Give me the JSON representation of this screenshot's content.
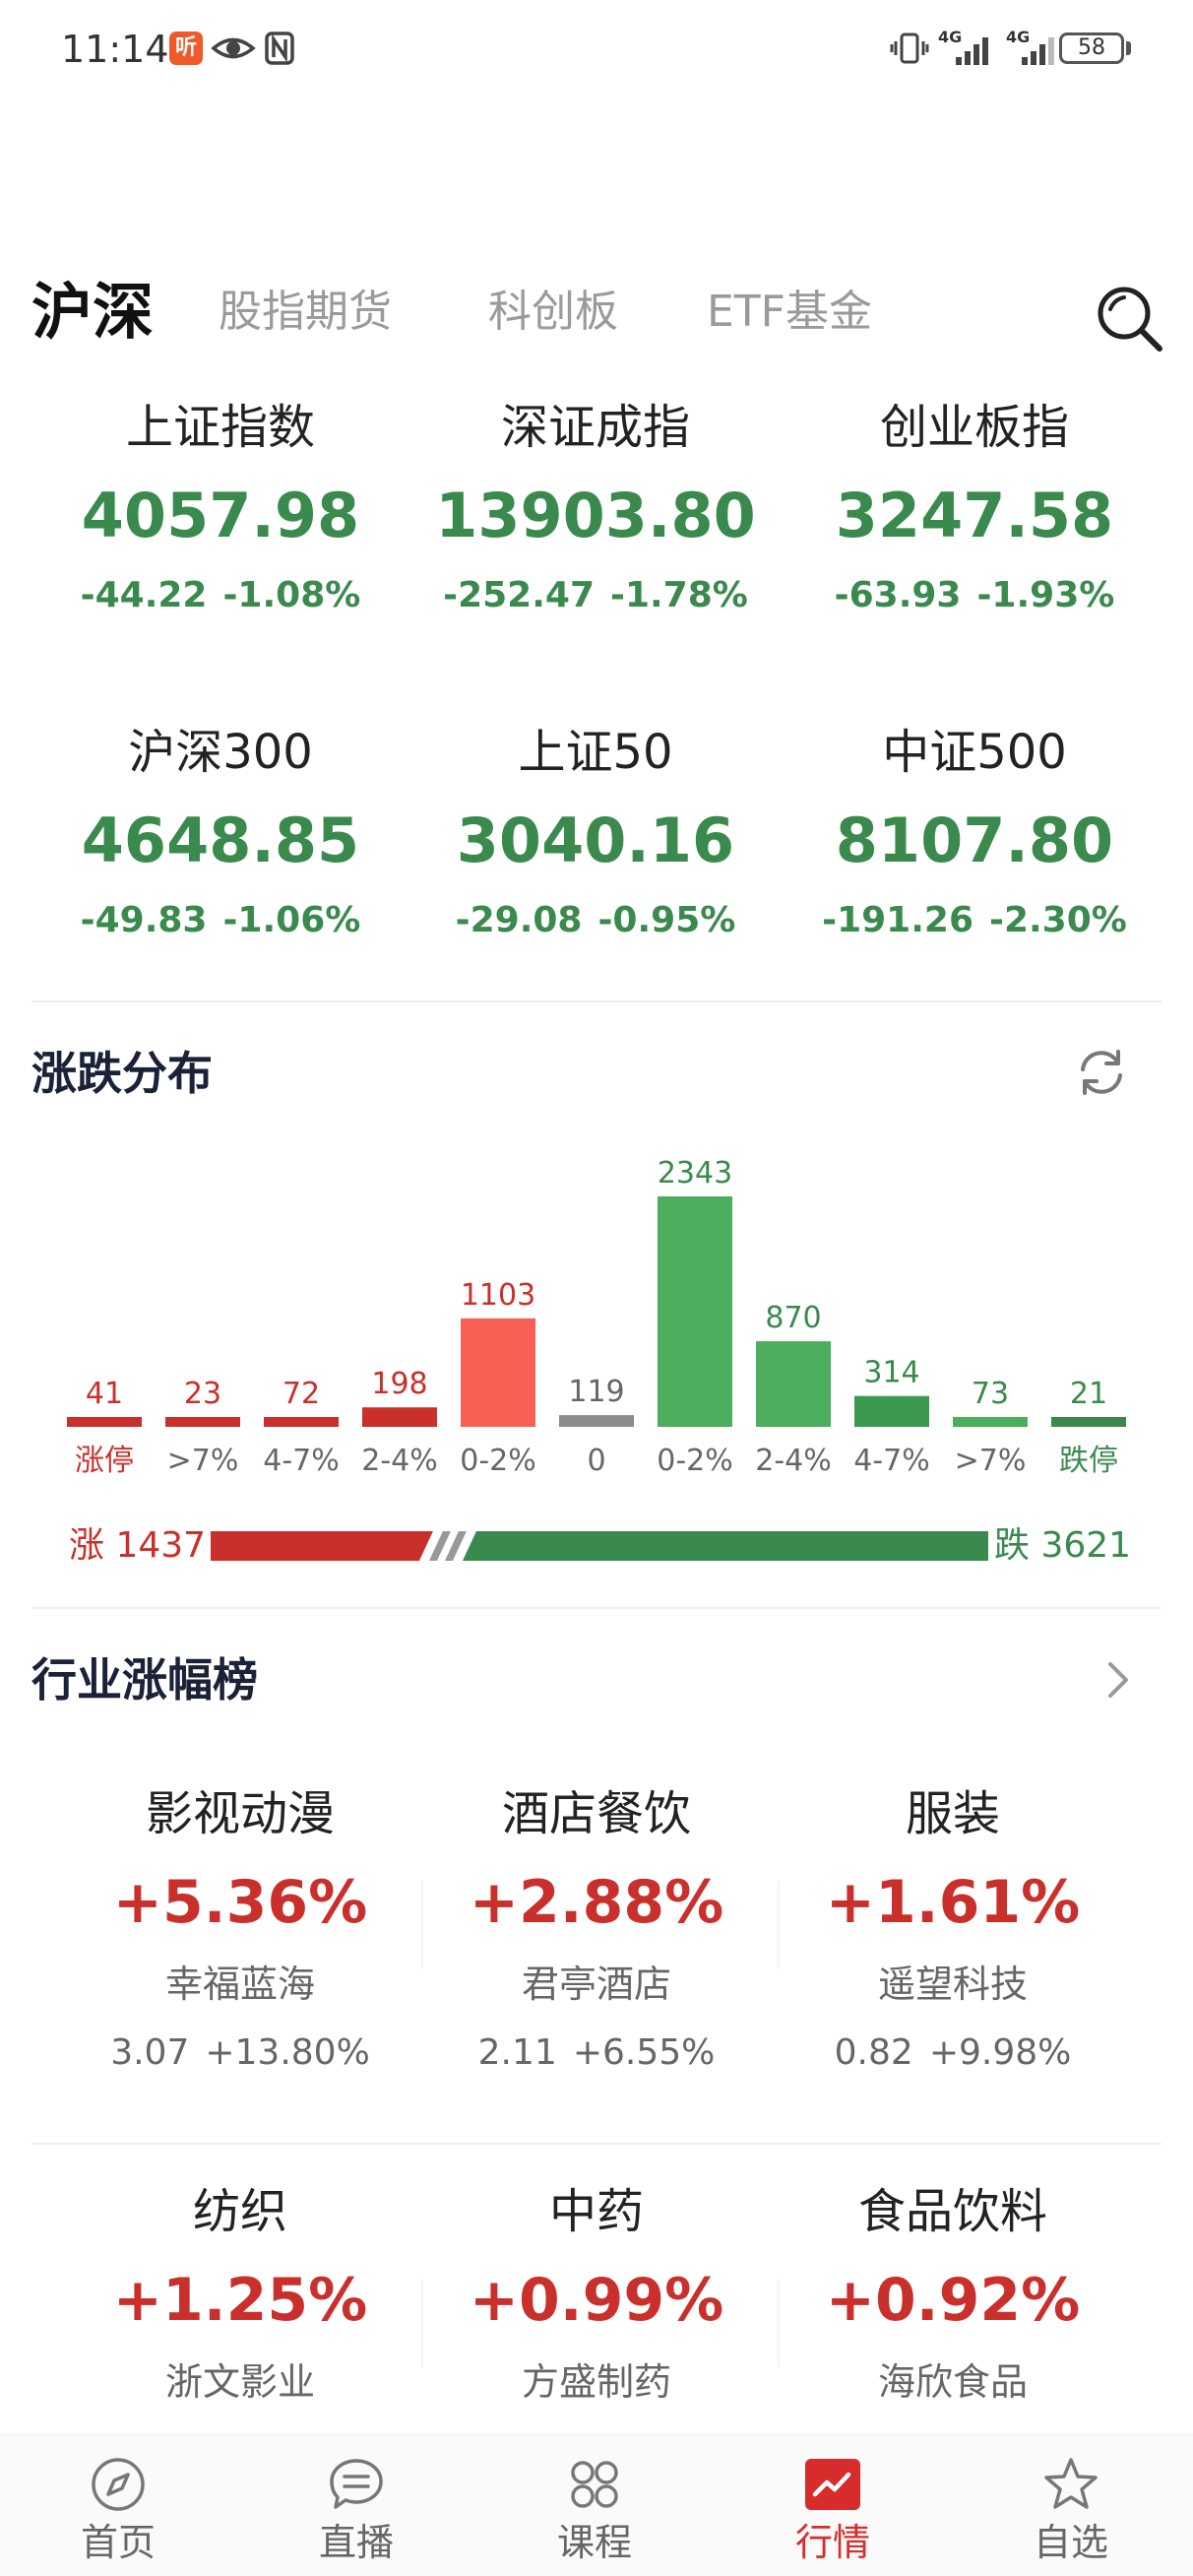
{
  "status_bar": {
    "time": "11:14",
    "app_badge": "听",
    "network_1": "4G",
    "network_2": "4G",
    "battery": "58"
  },
  "tabs": [
    {
      "label": "沪深",
      "active": true
    },
    {
      "label": "股指期货",
      "active": false
    },
    {
      "label": "科创板",
      "active": false
    },
    {
      "label": "ETF基金",
      "active": false
    }
  ],
  "indices": [
    {
      "name": "上证指数",
      "value": "4057.98",
      "change": "-44.22",
      "pct": "-1.08%"
    },
    {
      "name": "深证成指",
      "value": "13903.80",
      "change": "-252.47",
      "pct": "-1.78%"
    },
    {
      "name": "创业板指",
      "value": "3247.58",
      "change": "-63.93",
      "pct": "-1.93%"
    },
    {
      "name": "沪深300",
      "value": "4648.85",
      "change": "-49.83",
      "pct": "-1.06%"
    },
    {
      "name": "上证50",
      "value": "3040.16",
      "change": "-29.08",
      "pct": "-0.95%"
    },
    {
      "name": "中证500",
      "value": "8107.80",
      "change": "-191.26",
      "pct": "-2.30%"
    }
  ],
  "distribution": {
    "title": "涨跌分布",
    "up_label": "涨 1437",
    "down_label": "跌 3621",
    "up_count": 1437,
    "down_count": 3621
  },
  "chart_data": {
    "type": "bar",
    "categories": [
      "涨停",
      ">7%",
      "4-7%",
      "2-4%",
      "0-2%",
      "0",
      "0-2%",
      "2-4%",
      "4-7%",
      ">7%",
      "跌停"
    ],
    "values": [
      41,
      23,
      72,
      198,
      1103,
      119,
      2343,
      870,
      314,
      73,
      21
    ],
    "colors": [
      "#c9302c",
      "#c9302c",
      "#c9302c",
      "#c9302c",
      "#f86056",
      "#8c8c8c",
      "#4cae5c",
      "#4cae5c",
      "#3c9a4e",
      "#4cae5c",
      "#3c8a4a"
    ],
    "label_colors": [
      "#c9302c",
      "#c9302c",
      "#c9302c",
      "#c9302c",
      "#c9302c",
      "#666666",
      "#3a8a4e",
      "#3a8a4e",
      "#3a8a4e",
      "#3a8a4e",
      "#3a8a4e"
    ],
    "title": "涨跌分布",
    "xlabel": "",
    "ylabel": ""
  },
  "industry": {
    "title": "行业涨幅榜",
    "items": [
      {
        "name": "影视动漫",
        "pct": "+5.36%",
        "stock": "幸福蓝海",
        "price": "3.07",
        "stock_pct": "+13.80%"
      },
      {
        "name": "酒店餐饮",
        "pct": "+2.88%",
        "stock": "君亭酒店",
        "price": "2.11",
        "stock_pct": "+6.55%"
      },
      {
        "name": "服装",
        "pct": "+1.61%",
        "stock": "遥望科技",
        "price": "0.82",
        "stock_pct": "+9.98%"
      },
      {
        "name": "纺织",
        "pct": "+1.25%",
        "stock": "浙文影业",
        "price": "",
        "stock_pct": ""
      },
      {
        "name": "中药",
        "pct": "+0.99%",
        "stock": "方盛制药",
        "price": "",
        "stock_pct": ""
      },
      {
        "name": "食品饮料",
        "pct": "+0.92%",
        "stock": "海欣食品",
        "price": "",
        "stock_pct": ""
      }
    ]
  },
  "bottom_nav": [
    {
      "label": "首页",
      "icon": "compass-icon",
      "active": false
    },
    {
      "label": "直播",
      "icon": "chat-bubble-icon",
      "active": false
    },
    {
      "label": "课程",
      "icon": "grid-icon",
      "active": false
    },
    {
      "label": "行情",
      "icon": "market-chart-icon",
      "active": true
    },
    {
      "label": "自选",
      "icon": "star-icon",
      "active": false
    }
  ],
  "colors": {
    "up": "#c9302c",
    "down": "#3a8a4e",
    "accent": "#d62c2c"
  }
}
